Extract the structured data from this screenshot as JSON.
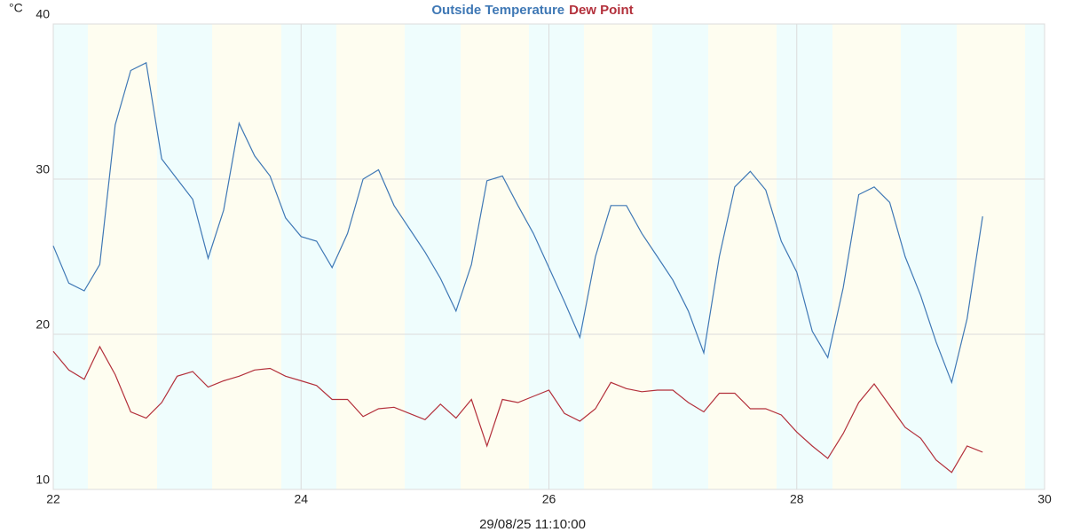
{
  "chart_data": {
    "type": "line",
    "y_label": "°C",
    "x_label": "29/08/25 11:10:00",
    "x": [
      22,
      22.125,
      22.25,
      22.375,
      22.5,
      22.625,
      22.75,
      22.875,
      23,
      23.125,
      23.25,
      23.375,
      23.5,
      23.625,
      23.75,
      23.875,
      24,
      24.125,
      24.25,
      24.375,
      24.5,
      24.625,
      24.75,
      24.875,
      25,
      25.125,
      25.25,
      25.375,
      25.5,
      25.625,
      25.75,
      25.875,
      26,
      26.125,
      26.25,
      26.375,
      26.5,
      26.625,
      26.75,
      26.875,
      27,
      27.125,
      27.25,
      27.375,
      27.5,
      27.625,
      27.75,
      27.875,
      28,
      28.125,
      28.25,
      28.375,
      28.5,
      28.625,
      28.75,
      28.875,
      29,
      29.125,
      29.25,
      29.375,
      29.5
    ],
    "series": [
      {
        "name": "Outside Temperature",
        "color": "#3f78b5",
        "values": [
          25.7,
          23.3,
          22.8,
          24.5,
          33.5,
          37.0,
          37.5,
          31.3,
          30.0,
          28.7,
          24.9,
          28.0,
          33.6,
          31.5,
          30.2,
          27.5,
          26.3,
          26.0,
          24.3,
          26.5,
          30.0,
          30.6,
          28.3,
          26.8,
          25.3,
          23.6,
          21.5,
          24.5,
          29.9,
          30.2,
          28.3,
          26.5,
          24.3,
          22.1,
          19.8,
          25.0,
          28.3,
          28.3,
          26.5,
          25.0,
          23.5,
          21.5,
          18.8,
          25.0,
          29.5,
          30.5,
          29.3,
          26.0,
          24.0,
          20.2,
          18.5,
          23.0,
          29.0,
          29.5,
          28.5,
          25.0,
          22.5,
          19.5,
          16.9,
          21.0,
          27.6
        ]
      },
      {
        "name": "Dew Point",
        "color": "#b3303b",
        "values": [
          18.9,
          17.7,
          17.1,
          19.2,
          17.4,
          15.0,
          14.6,
          15.6,
          17.3,
          17.6,
          16.6,
          17.0,
          17.3,
          17.7,
          17.8,
          17.3,
          17.0,
          16.7,
          15.8,
          15.8,
          14.7,
          15.2,
          15.3,
          14.9,
          14.5,
          15.5,
          14.6,
          15.8,
          12.8,
          15.8,
          15.6,
          16.0,
          16.4,
          14.9,
          14.4,
          15.2,
          16.9,
          16.5,
          16.3,
          16.4,
          16.4,
          15.6,
          15.0,
          16.2,
          16.2,
          15.2,
          15.2,
          14.8,
          13.7,
          12.8,
          12.0,
          13.6,
          15.6,
          16.8,
          15.4,
          14.0,
          13.3,
          11.9,
          11.1,
          12.8,
          12.4
        ]
      }
    ],
    "xlim": [
      22,
      30
    ],
    "xticks": [
      22,
      24,
      26,
      28,
      30
    ],
    "ylim": [
      10,
      40
    ],
    "yticks": [
      10,
      20,
      30,
      40
    ],
    "grid": true
  }
}
